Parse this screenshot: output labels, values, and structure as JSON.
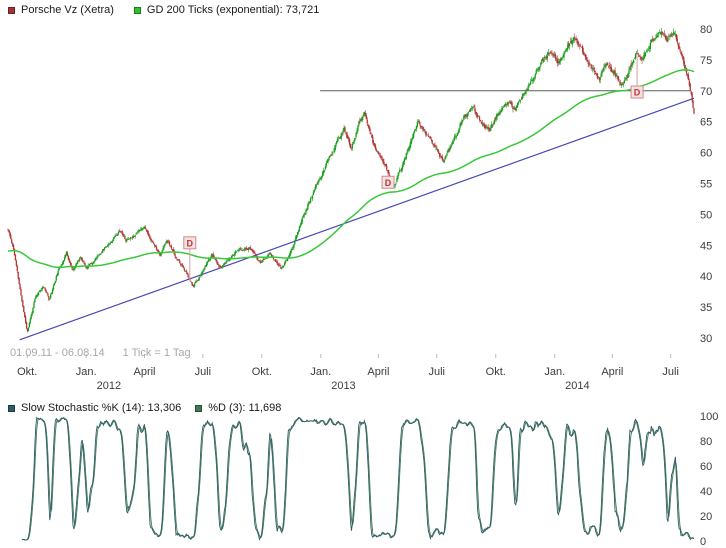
{
  "header": {
    "series1": {
      "label": "Porsche Vz (Xetra)",
      "color": "#a03333"
    },
    "series2": {
      "label": "GD 200 Ticks (exponential): 73,721",
      "color": "#2fbf2f"
    }
  },
  "info": {
    "range": "01.09.11 - 06.08.14",
    "tick": "1 Tick = 1 Tag"
  },
  "stoch_legend": {
    "k": {
      "label": "Slow Stochastic %K (14): 13,306",
      "color": "#2e5a68"
    },
    "d": {
      "label": "%D (3): 11,698",
      "color": "#3f7a52"
    }
  },
  "chart_data": {
    "type": "candlestick",
    "title": "Porsche Vz (Xetra)",
    "period_info": {
      "range": "01.09.11 - 06.08.14",
      "tick": "1 Tick = 1 Tag"
    },
    "bars": 740,
    "seed": 11,
    "y_axis": {
      "min": 30,
      "max": 80,
      "step": 5,
      "ticks": [
        80,
        75,
        70,
        65,
        60,
        55,
        50,
        45,
        40,
        35,
        30
      ]
    },
    "x_ticks": [
      {
        "label": "Okt.",
        "t": 0.028
      },
      {
        "label": "Jan.",
        "t": 0.114
      },
      {
        "label": "April",
        "t": 0.199
      },
      {
        "label": "Juli",
        "t": 0.284
      },
      {
        "label": "Okt.",
        "t": 0.37
      },
      {
        "label": "Jan.",
        "t": 0.456
      },
      {
        "label": "April",
        "t": 0.54
      },
      {
        "label": "Juli",
        "t": 0.625
      },
      {
        "label": "Okt.",
        "t": 0.711
      },
      {
        "label": "Jan.",
        "t": 0.797
      },
      {
        "label": "April",
        "t": 0.881
      },
      {
        "label": "Juli",
        "t": 0.966
      }
    ],
    "year_labels": [
      {
        "label": "2012",
        "t": 0.147
      },
      {
        "label": "2013",
        "t": 0.489
      },
      {
        "label": "2014",
        "t": 0.83
      }
    ],
    "price_anchors": [
      [
        0.0,
        47.5
      ],
      [
        0.008,
        44.5
      ],
      [
        0.018,
        37.5
      ],
      [
        0.028,
        31.0
      ],
      [
        0.04,
        36.5
      ],
      [
        0.052,
        38.5
      ],
      [
        0.06,
        36.2
      ],
      [
        0.072,
        40.5
      ],
      [
        0.085,
        43.8
      ],
      [
        0.095,
        40.8
      ],
      [
        0.105,
        43.2
      ],
      [
        0.115,
        41.5
      ],
      [
        0.125,
        42.5
      ],
      [
        0.14,
        44.5
      ],
      [
        0.152,
        46.0
      ],
      [
        0.163,
        47.6
      ],
      [
        0.172,
        45.8
      ],
      [
        0.185,
        46.8
      ],
      [
        0.198,
        48.2
      ],
      [
        0.21,
        45.6
      ],
      [
        0.222,
        43.6
      ],
      [
        0.232,
        45.8
      ],
      [
        0.245,
        43.0
      ],
      [
        0.258,
        40.8
      ],
      [
        0.27,
        38.4
      ],
      [
        0.283,
        40.6
      ],
      [
        0.297,
        43.4
      ],
      [
        0.31,
        41.2
      ],
      [
        0.322,
        42.8
      ],
      [
        0.335,
        44.2
      ],
      [
        0.352,
        44.6
      ],
      [
        0.368,
        42.2
      ],
      [
        0.382,
        43.6
      ],
      [
        0.398,
        41.2
      ],
      [
        0.412,
        43.8
      ],
      [
        0.428,
        49.0
      ],
      [
        0.443,
        53.0
      ],
      [
        0.458,
        56.5
      ],
      [
        0.47,
        59.5
      ],
      [
        0.48,
        61.8
      ],
      [
        0.49,
        63.8
      ],
      [
        0.5,
        60.8
      ],
      [
        0.512,
        64.8
      ],
      [
        0.52,
        66.2
      ],
      [
        0.532,
        61.8
      ],
      [
        0.543,
        59.2
      ],
      [
        0.553,
        57.0
      ],
      [
        0.562,
        54.2
      ],
      [
        0.572,
        57.2
      ],
      [
        0.585,
        61.0
      ],
      [
        0.598,
        65.3
      ],
      [
        0.61,
        62.8
      ],
      [
        0.622,
        60.8
      ],
      [
        0.635,
        58.6
      ],
      [
        0.65,
        62.2
      ],
      [
        0.665,
        65.8
      ],
      [
        0.678,
        67.4
      ],
      [
        0.69,
        64.8
      ],
      [
        0.702,
        63.6
      ],
      [
        0.715,
        66.2
      ],
      [
        0.728,
        68.4
      ],
      [
        0.74,
        66.8
      ],
      [
        0.752,
        69.6
      ],
      [
        0.765,
        72.0
      ],
      [
        0.778,
        74.6
      ],
      [
        0.79,
        76.2
      ],
      [
        0.802,
        74.4
      ],
      [
        0.815,
        77.2
      ],
      [
        0.828,
        78.6
      ],
      [
        0.84,
        75.8
      ],
      [
        0.852,
        73.4
      ],
      [
        0.862,
        71.6
      ],
      [
        0.872,
        74.6
      ],
      [
        0.884,
        72.8
      ],
      [
        0.895,
        70.8
      ],
      [
        0.905,
        73.2
      ],
      [
        0.916,
        76.2
      ],
      [
        0.925,
        75.0
      ],
      [
        0.938,
        78.0
      ],
      [
        0.95,
        79.8
      ],
      [
        0.96,
        78.4
      ],
      [
        0.97,
        79.6
      ],
      [
        0.98,
        76.6
      ],
      [
        0.99,
        72.8
      ],
      [
        1.0,
        66.6
      ]
    ],
    "moving_average": {
      "label": "GD 200 Ticks (exponential)",
      "period": 200,
      "method": "exponential",
      "init": 44.0,
      "current_value": "73,721",
      "color": "#38c838"
    },
    "trendline": {
      "color": "#4747b5",
      "from": [
        0.017,
        29.7
      ],
      "to": [
        1.0,
        68.8
      ]
    },
    "resistance_line": {
      "color": "#5a5a5a",
      "value": 70.0,
      "from_t": 0.455,
      "to_t": 0.995
    },
    "dividend_markers": {
      "label": "D",
      "text_color": "#b03a3a",
      "bg": "#f8e0e0",
      "border": "#c98c8c",
      "connector": "#d4a0a0",
      "points": [
        [
          0.265,
          45.4
        ],
        [
          0.554,
          55.2
        ],
        [
          0.917,
          69.8
        ]
      ]
    },
    "candle_colors": {
      "up": "#169c19",
      "down": "#b13434"
    },
    "stochastic": {
      "type": "line",
      "k_period": 14,
      "d_period": 3,
      "k_current": "13,306",
      "d_current": "11,698",
      "k_color": "#2e5a68",
      "d_color": "#3f7a52",
      "range": [
        0,
        100
      ],
      "axis_ticks": [
        100,
        80,
        60,
        40,
        20,
        0
      ]
    },
    "axis_text_color": "#3c3c3c",
    "tick_mark_color": "#bbbbbb"
  }
}
